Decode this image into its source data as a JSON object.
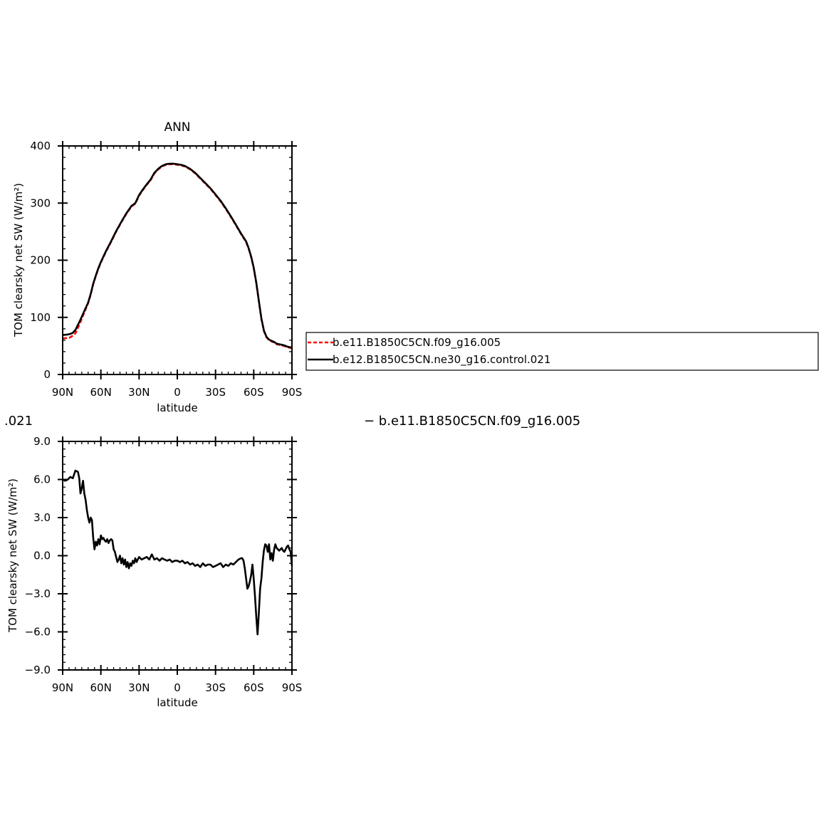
{
  "chart_data": [
    {
      "type": "line",
      "title": "ANN",
      "xlabel": "latitude",
      "ylabel": "TOM clearsky net SW (W/m²)",
      "xlim": [
        90,
        -90
      ],
      "ylim": [
        0,
        400
      ],
      "x_ticks": [
        90,
        60,
        30,
        0,
        -30,
        -60,
        -90
      ],
      "x_tick_labels": [
        "90N",
        "60N",
        "30N",
        "0",
        "30S",
        "60S",
        "90S"
      ],
      "y_ticks": [
        0,
        100,
        200,
        300,
        400
      ],
      "y_tick_labels": [
        "0",
        "100",
        "200",
        "300",
        "400"
      ],
      "legend_position": "right",
      "series": [
        {
          "name": "b.e11.B1850C5CN.f09_g16.005",
          "color": "#ff0000",
          "dash": "dashed",
          "x": [
            90,
            86,
            84,
            82,
            80,
            78,
            76,
            74,
            72,
            70,
            68,
            66,
            64,
            62,
            60,
            56,
            52,
            48,
            44,
            40,
            36,
            33,
            30,
            27,
            24,
            21,
            18,
            15,
            12,
            9,
            6,
            3,
            0,
            -3,
            -6,
            -10,
            -14,
            -18,
            -22,
            -26,
            -30,
            -34,
            -38,
            -42,
            -46,
            -50,
            -54,
            -56,
            -58,
            -60,
            -62,
            -64,
            -66,
            -68,
            -70,
            -72,
            -74,
            -76,
            -78,
            -80,
            -82,
            -84,
            -86,
            -88,
            -90
          ],
          "y": [
            63,
            64,
            65,
            68,
            72,
            82,
            92,
            103,
            114,
            125,
            140,
            158,
            172,
            185,
            196,
            215,
            232,
            250,
            266,
            281,
            294,
            299,
            313,
            323,
            332,
            340,
            352,
            359,
            364,
            367,
            368,
            368,
            367,
            366,
            364,
            359,
            352,
            343,
            334,
            325,
            314,
            303,
            290,
            276,
            261,
            246,
            232,
            220,
            205,
            186,
            160,
            128,
            97,
            76,
            65,
            60,
            58,
            56,
            53,
            52,
            51,
            50,
            48,
            47,
            46
          ]
        },
        {
          "name": "b.e12.B1850C5CN.ne30_g16.control.021",
          "color": "#000000",
          "dash": "solid",
          "x": [
            90,
            86,
            84,
            82,
            80,
            78,
            76,
            74,
            72,
            70,
            68,
            66,
            64,
            62,
            60,
            56,
            52,
            48,
            44,
            40,
            36,
            33,
            30,
            27,
            24,
            21,
            18,
            15,
            12,
            9,
            6,
            3,
            0,
            -3,
            -6,
            -10,
            -14,
            -18,
            -22,
            -26,
            -30,
            -34,
            -38,
            -42,
            -46,
            -50,
            -54,
            -56,
            -58,
            -60,
            -62,
            -64,
            -66,
            -68,
            -70,
            -72,
            -74,
            -76,
            -78,
            -80,
            -82,
            -84,
            -86,
            -88,
            -90
          ],
          "y": [
            69,
            70,
            71,
            73,
            78,
            87,
            96,
            106,
            116,
            126,
            141,
            159,
            173,
            186,
            197,
            216,
            233,
            251,
            267,
            282,
            295,
            300,
            314,
            324,
            333,
            341,
            353,
            360,
            365,
            368,
            369,
            369,
            368,
            367,
            365,
            360,
            353,
            344,
            335,
            326,
            315,
            304,
            291,
            277,
            262,
            247,
            233,
            221,
            206,
            187,
            161,
            129,
            98,
            77,
            66,
            61,
            59,
            57,
            54,
            53,
            52,
            51,
            49,
            48,
            47
          ]
        }
      ]
    },
    {
      "type": "line",
      "title": "",
      "xlabel": "latitude",
      "ylabel": "TOM clearsky net SW (W/m²)",
      "xlim": [
        90,
        -90
      ],
      "ylim": [
        -9,
        9
      ],
      "x_ticks": [
        90,
        60,
        30,
        0,
        -30,
        -60,
        -90
      ],
      "x_tick_labels": [
        "90N",
        "60N",
        "30N",
        "0",
        "30S",
        "60S",
        "90S"
      ],
      "y_ticks": [
        -9,
        -6,
        -3,
        0,
        3,
        6,
        9
      ],
      "y_tick_labels": [
        "−9.0",
        "−6.0",
        "−3.0",
        "0.0",
        "3.0",
        "6.0",
        "9.0"
      ],
      "caption_left": ".021",
      "caption_right": "−  b.e11.B1850C5CN.f09_g16.005",
      "series": [
        {
          "name": "",
          "color": "#000000",
          "dash": "solid",
          "x": [
            90,
            88,
            86,
            84,
            82,
            80,
            78,
            77,
            76,
            75,
            74,
            73,
            72,
            71,
            70,
            69,
            68,
            67,
            66,
            65,
            64,
            63,
            62,
            61,
            60,
            59,
            58,
            57,
            56,
            55,
            54,
            53,
            52,
            51,
            50,
            49,
            48,
            47,
            46,
            45,
            44,
            43,
            42,
            41,
            40,
            39,
            38,
            37,
            36,
            35,
            34,
            33,
            32,
            31,
            30,
            28,
            26,
            24,
            22,
            20,
            18,
            16,
            14,
            12,
            10,
            8,
            6,
            4,
            2,
            0,
            -2,
            -4,
            -6,
            -8,
            -10,
            -12,
            -14,
            -16,
            -18,
            -20,
            -22,
            -24,
            -26,
            -28,
            -30,
            -32,
            -34,
            -36,
            -38,
            -40,
            -42,
            -44,
            -46,
            -48,
            -50,
            -51,
            -52,
            -53,
            -54,
            -55,
            -56,
            -57,
            -58,
            -59,
            -60,
            -61,
            -62,
            -63,
            -64,
            -65,
            -66,
            -67,
            -68,
            -69,
            -70,
            -71,
            -72,
            -73,
            -74,
            -75,
            -76,
            -77,
            -78,
            -79,
            -80,
            -81,
            -82,
            -83,
            -84,
            -85,
            -86,
            -87,
            -88,
            -89,
            -90
          ],
          "y": [
            6.0,
            5.9,
            6.0,
            6.2,
            6.1,
            6.7,
            6.6,
            6.1,
            4.9,
            5.3,
            5.9,
            4.9,
            4.4,
            3.6,
            3.0,
            2.6,
            3.0,
            2.8,
            1.4,
            0.5,
            1.1,
            0.8,
            1.3,
            0.9,
            1.6,
            1.3,
            1.4,
            1.2,
            1.1,
            1.3,
            1.0,
            1.2,
            1.3,
            1.2,
            0.5,
            0.3,
            -0.1,
            -0.5,
            -0.3,
            0.0,
            -0.6,
            -0.2,
            -0.7,
            -0.3,
            -0.9,
            -0.5,
            -1.0,
            -0.6,
            -0.8,
            -0.4,
            -0.6,
            -0.2,
            -0.5,
            -0.3,
            -0.1,
            -0.3,
            -0.2,
            -0.1,
            -0.3,
            0.1,
            -0.3,
            -0.2,
            -0.4,
            -0.2,
            -0.3,
            -0.4,
            -0.3,
            -0.5,
            -0.4,
            -0.4,
            -0.5,
            -0.4,
            -0.6,
            -0.5,
            -0.7,
            -0.6,
            -0.8,
            -0.7,
            -0.9,
            -0.6,
            -0.8,
            -0.7,
            -0.7,
            -0.9,
            -0.8,
            -0.7,
            -0.6,
            -0.9,
            -0.7,
            -0.8,
            -0.6,
            -0.7,
            -0.5,
            -0.3,
            -0.2,
            -0.2,
            -0.4,
            -1.0,
            -1.8,
            -2.6,
            -2.4,
            -2.0,
            -1.5,
            -0.7,
            -1.8,
            -3.2,
            -4.8,
            -6.2,
            -4.5,
            -2.6,
            -1.8,
            -0.5,
            0.4,
            0.9,
            0.8,
            0.3,
            0.9,
            -0.3,
            0.2,
            -0.4,
            0.5,
            0.9,
            0.6,
            0.5,
            0.4,
            0.5,
            0.6,
            0.4,
            0.3,
            0.5,
            0.7,
            0.8,
            0.5,
            0.3,
            -0.8
          ]
        }
      ]
    }
  ]
}
